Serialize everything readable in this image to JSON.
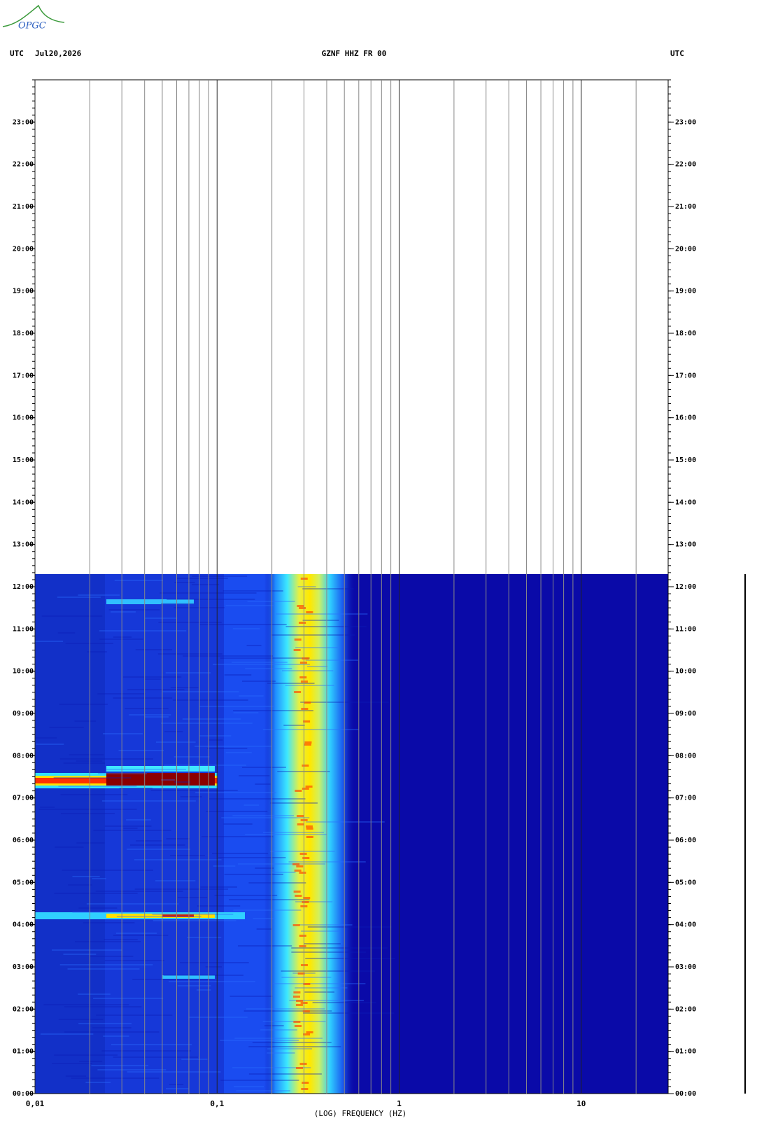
{
  "logo": "OPGC",
  "chart_data": {
    "type": "spectrogram",
    "timezone_left": "UTC",
    "date": "Jul20,2026",
    "title": "GZNF HHZ FR 00",
    "timezone_right": "UTC",
    "xlabel": "(LOG) FREQUENCY (HZ)",
    "xscale": "log",
    "xlim": [
      0.01,
      30
    ],
    "xticks": [
      {
        "value": 0.01,
        "label": "0,01"
      },
      {
        "value": 0.1,
        "label": "0,1"
      },
      1,
      10
    ],
    "ylim": [
      0,
      24
    ],
    "yticks": [
      {
        "value": 0,
        "label": "00:00"
      },
      {
        "value": 1,
        "label": "01:00"
      },
      {
        "value": 2,
        "label": "02:00"
      },
      {
        "value": 3,
        "label": "03:00"
      },
      {
        "value": 4,
        "label": "04:00"
      },
      {
        "value": 5,
        "label": "05:00"
      },
      {
        "value": 6,
        "label": "06:00"
      },
      {
        "value": 7,
        "label": "07:00"
      },
      {
        "value": 8,
        "label": "08:00"
      },
      {
        "value": 9,
        "label": "09:00"
      },
      {
        "value": 10,
        "label": "10:00"
      },
      {
        "value": 11,
        "label": "11:00"
      },
      {
        "value": 12,
        "label": "12:00"
      },
      {
        "value": 13,
        "label": "13:00"
      },
      {
        "value": 14,
        "label": "14:00"
      },
      {
        "value": 15,
        "label": "15:00"
      },
      {
        "value": 16,
        "label": "16:00"
      },
      {
        "value": 17,
        "label": "17:00"
      },
      {
        "value": 18,
        "label": "18:00"
      },
      {
        "value": 19,
        "label": "19:00"
      },
      {
        "value": 20,
        "label": "20:00"
      },
      {
        "value": 21,
        "label": "21:00"
      },
      {
        "value": 22,
        "label": "22:00"
      },
      {
        "value": 23,
        "label": "23:00"
      }
    ],
    "grid": true
  }
}
